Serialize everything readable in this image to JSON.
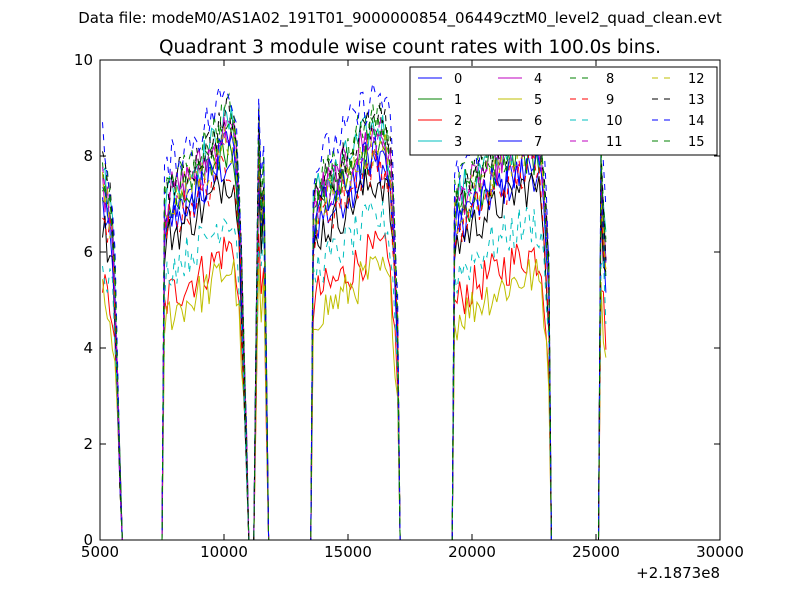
{
  "figure": {
    "supertitle": "Data file: modeM0/AS1A02_191T01_9000000854_06449cztM0_level2_quad_clean.evt",
    "title": "Quadrant 3 module wise count rates with 100.0s bins.",
    "x_offset_text": "+2.1873e8"
  },
  "chart_data": {
    "type": "line",
    "title": "Quadrant 3 module wise count rates with 100.0s bins.",
    "xlabel": "",
    "ylabel": "",
    "x_offset": 218730000,
    "xlim": [
      5000,
      30000
    ],
    "ylim": [
      0,
      10
    ],
    "x_ticks": [
      5000,
      10000,
      15000,
      20000,
      25000,
      30000
    ],
    "y_ticks": [
      0,
      2,
      4,
      6,
      8,
      10
    ],
    "x_tick_labels": [
      "5000",
      "10000",
      "15000",
      "20000",
      "25000",
      "30000"
    ],
    "y_tick_labels": [
      "0",
      "2",
      "4",
      "6",
      "8",
      "10"
    ],
    "grid": false,
    "legend_position": "top-right",
    "legend_columns": 4,
    "bin_seconds": 100,
    "baselines": [
      7.0,
      7.3,
      5.4,
      7.7,
      7.6,
      5.0,
      6.7,
      7.2,
      7.9,
      7.0,
      6.0,
      7.5,
      7.4,
      7.8,
      8.3,
      7.7
    ],
    "segments": [
      {
        "start": 5100,
        "end": 5800,
        "shape": [
          1.0,
          0.95,
          0.92,
          0.9,
          0.8,
          0.5,
          0.2
        ]
      },
      {
        "start": 7600,
        "end": 10900,
        "shape": [
          0.9,
          0.95,
          0.96,
          0.97,
          0.99,
          1.0,
          1.02,
          1.03,
          1.05,
          1.07,
          1.1,
          1.12,
          1.13,
          1.1,
          0.8,
          0.3
        ]
      },
      {
        "start": 11300,
        "end": 11700,
        "shape": [
          0.6,
          1.1,
          0.9,
          1.0,
          0.5
        ]
      },
      {
        "start": 13600,
        "end": 17000,
        "shape": [
          0.9,
          0.96,
          0.97,
          0.98,
          1.0,
          1.02,
          1.04,
          1.06,
          1.08,
          1.1,
          1.11,
          1.12,
          1.1,
          1.0,
          0.6
        ]
      },
      {
        "start": 19300,
        "end": 23100,
        "shape": [
          0.9,
          0.94,
          0.96,
          0.98,
          1.0,
          1.02,
          1.03,
          1.05,
          1.06,
          1.08,
          1.09,
          1.1,
          1.1,
          1.05,
          0.7
        ]
      },
      {
        "start": 25200,
        "end": 25400,
        "shape": [
          1.0,
          0.9,
          0.8
        ]
      }
    ],
    "series": [
      {
        "name": "0",
        "color": "#0000ff",
        "linestyle": "solid"
      },
      {
        "name": "1",
        "color": "#008000",
        "linestyle": "solid"
      },
      {
        "name": "2",
        "color": "#ff0000",
        "linestyle": "solid"
      },
      {
        "name": "3",
        "color": "#00bfbf",
        "linestyle": "solid"
      },
      {
        "name": "4",
        "color": "#bf00bf",
        "linestyle": "solid"
      },
      {
        "name": "5",
        "color": "#bfbf00",
        "linestyle": "solid"
      },
      {
        "name": "6",
        "color": "#000000",
        "linestyle": "solid"
      },
      {
        "name": "7",
        "color": "#0000ff",
        "linestyle": "solid"
      },
      {
        "name": "8",
        "color": "#008000",
        "linestyle": "dashed"
      },
      {
        "name": "9",
        "color": "#ff0000",
        "linestyle": "dashed"
      },
      {
        "name": "10",
        "color": "#00bfbf",
        "linestyle": "dashed"
      },
      {
        "name": "11",
        "color": "#bf00bf",
        "linestyle": "dashed"
      },
      {
        "name": "12",
        "color": "#bfbf00",
        "linestyle": "dashed"
      },
      {
        "name": "13",
        "color": "#000000",
        "linestyle": "dashed"
      },
      {
        "name": "14",
        "color": "#0000ff",
        "linestyle": "dashed"
      },
      {
        "name": "15",
        "color": "#008000",
        "linestyle": "dashed"
      }
    ]
  }
}
